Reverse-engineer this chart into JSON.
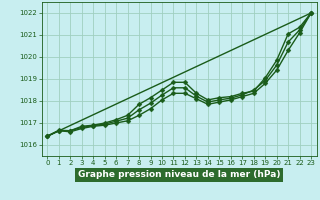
{
  "title": "Graphe pression niveau de la mer (hPa)",
  "bg_color": "#c8eef0",
  "plot_bg_color": "#c8eef0",
  "xlabel_bg_color": "#2d6b2d",
  "grid_color": "#a0cfc0",
  "line_color": "#1a5c1a",
  "marker_color": "#1a5c1a",
  "tick_label_color": "#1a5c1a",
  "xlim": [
    -0.5,
    23.5
  ],
  "ylim": [
    1015.5,
    1022.5
  ],
  "yticks": [
    1016,
    1017,
    1018,
    1019,
    1020,
    1021,
    1022
  ],
  "xticks": [
    0,
    1,
    2,
    3,
    4,
    5,
    6,
    7,
    8,
    9,
    10,
    11,
    12,
    13,
    14,
    15,
    16,
    17,
    18,
    19,
    20,
    21,
    22,
    23
  ],
  "series": [
    {
      "x": [
        0,
        23
      ],
      "y": [
        1016.4,
        1022.0
      ],
      "marker": null,
      "markersize": 0,
      "linewidth": 1.0
    },
    {
      "x": [
        0,
        1,
        2,
        3,
        4,
        5,
        6,
        7,
        8,
        9,
        10,
        11,
        12,
        13,
        14,
        15,
        16,
        17,
        18,
        19,
        20,
        21,
        22,
        23
      ],
      "y": [
        1016.4,
        1016.65,
        1016.65,
        1016.85,
        1016.9,
        1017.0,
        1017.15,
        1017.35,
        1017.85,
        1018.15,
        1018.5,
        1018.85,
        1018.85,
        1018.35,
        1018.05,
        1018.15,
        1018.2,
        1018.35,
        1018.45,
        1019.05,
        1019.85,
        1021.05,
        1021.35,
        1022.0
      ],
      "marker": "D",
      "markersize": 2.5,
      "linewidth": 1.0
    },
    {
      "x": [
        0,
        1,
        2,
        3,
        4,
        5,
        6,
        7,
        8,
        9,
        10,
        11,
        12,
        13,
        14,
        15,
        16,
        17,
        18,
        19,
        20,
        21,
        22,
        23
      ],
      "y": [
        1016.4,
        1016.65,
        1016.6,
        1016.75,
        1016.85,
        1016.9,
        1017.0,
        1017.1,
        1017.35,
        1017.65,
        1018.05,
        1018.35,
        1018.35,
        1018.1,
        1017.85,
        1017.95,
        1018.05,
        1018.2,
        1018.35,
        1018.8,
        1019.4,
        1020.3,
        1021.1,
        1022.0
      ],
      "marker": "D",
      "markersize": 2.5,
      "linewidth": 1.0
    },
    {
      "x": [
        0,
        1,
        2,
        3,
        4,
        5,
        6,
        7,
        8,
        9,
        10,
        11,
        12,
        13,
        14,
        15,
        16,
        17,
        18,
        19,
        20,
        21,
        22,
        23
      ],
      "y": [
        1016.4,
        1016.67,
        1016.65,
        1016.8,
        1016.88,
        1016.95,
        1017.08,
        1017.22,
        1017.6,
        1017.9,
        1018.27,
        1018.6,
        1018.6,
        1018.22,
        1017.95,
        1018.05,
        1018.13,
        1018.28,
        1018.5,
        1018.93,
        1019.63,
        1020.68,
        1021.23,
        1022.0
      ],
      "marker": "D",
      "markersize": 2.5,
      "linewidth": 1.0
    }
  ],
  "title_font_color": "#ffffff",
  "title_fontsize": 6.5,
  "tick_fontsize": 5.0
}
